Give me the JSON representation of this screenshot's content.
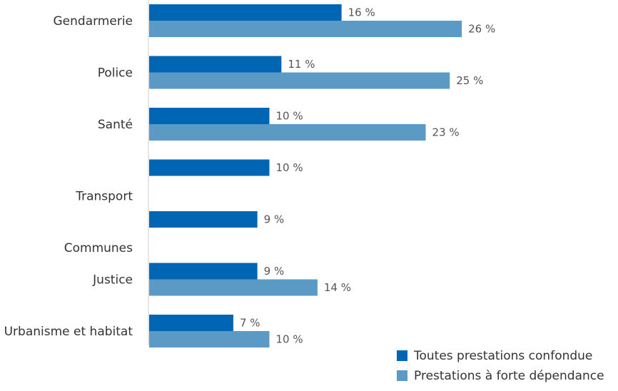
{
  "chart_data": {
    "type": "bar",
    "orientation": "horizontal",
    "categories": [
      "Gendarmerie",
      "Police",
      "Santé",
      "Transport",
      "Communes",
      "Justice",
      "Urbanisme et habitat"
    ],
    "series": [
      {
        "name": "Toutes prestations confondue",
        "color": "#0066b3",
        "values": [
          16,
          11,
          10,
          10,
          9,
          9,
          7
        ],
        "labels": [
          "16 %",
          "11 %",
          "10 %",
          "10 %",
          "9 %",
          "9 %",
          "7 %"
        ]
      },
      {
        "name": "Prestations à forte dépendance",
        "color": "#5b9ac4",
        "values": [
          26,
          25,
          23,
          null,
          null,
          14,
          10
        ],
        "labels": [
          "26 %",
          "25 %",
          "23 %",
          null,
          null,
          "14 %",
          "10 %"
        ]
      }
    ],
    "unit": "%",
    "grid": false,
    "legend_position": "bottom-right"
  }
}
